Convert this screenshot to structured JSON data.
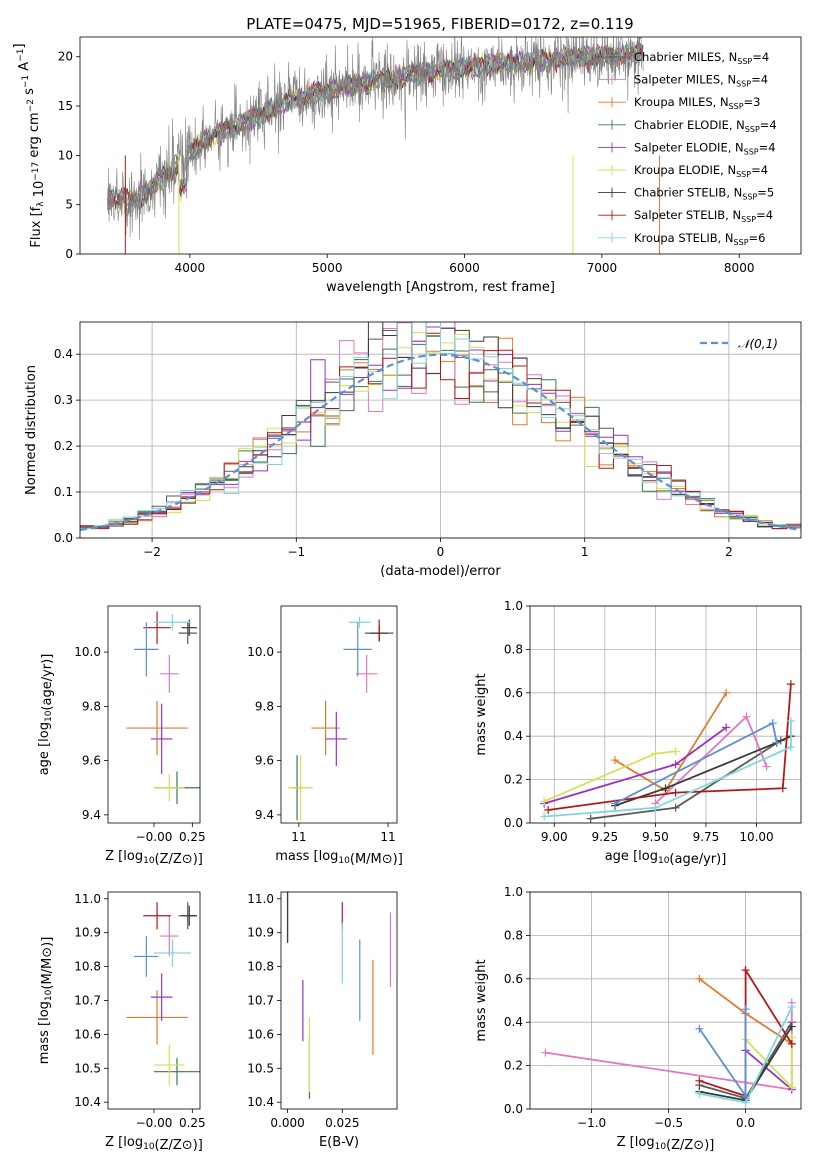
{
  "figure": {
    "title": "PLATE=0475, MJD=51965, FIBERID=0172, z=0.119"
  },
  "colors": {
    "Chabrier MILES": "#5a5a5a",
    "Salpeter MILES": "#e377c2",
    "Kroupa MILES": "#e07b2a",
    "Chabrier ELODIE": "#3a7a4a",
    "Salpeter ELODIE": "#9b30c8",
    "Kroupa ELODIE": "#d4e157",
    "Chabrier STELIB": "#3a3a3a",
    "Salpeter STELIB": "#b21818",
    "Kroupa STELIB": "#7fd6dc",
    "gauss": "#5b8fd6",
    "blueExtra": "#5b8fd6",
    "spectrum": "#808080"
  },
  "chart_data": [
    {
      "id": "spectrum",
      "type": "line",
      "title": "PLATE=0475, MJD=51965, FIBERID=0172, z=0.119",
      "xlabel": "wavelength [Angstrom, rest frame]",
      "ylabel": "Flux [f_λ 10^-17 erg cm^-2 s^-1 A^-1]",
      "xlim": [
        3200,
        8450
      ],
      "ylim": [
        0,
        22
      ],
      "xticks": [
        4000,
        5000,
        6000,
        7000,
        8000
      ],
      "yticks": [
        0,
        5,
        10,
        15,
        20
      ],
      "grid": false,
      "legend_position": "top-right",
      "legend": [
        {
          "name": "Chabrier MILES",
          "N": "4"
        },
        {
          "name": "Salpeter MILES",
          "N": "4"
        },
        {
          "name": "Kroupa MILES",
          "N": "3"
        },
        {
          "name": "Chabrier ELODIE",
          "N": "4"
        },
        {
          "name": "Salpeter ELODIE",
          "N": "4"
        },
        {
          "name": "Kroupa ELODIE",
          "N": "4"
        },
        {
          "name": "Chabrier STELIB",
          "N": "5"
        },
        {
          "name": "Salpeter STELIB",
          "N": "4"
        },
        {
          "name": "Kroupa STELIB",
          "N": "6"
        }
      ],
      "continuum": {
        "x": [
          3400,
          3600,
          3800,
          3950,
          4100,
          4300,
          4500,
          4700,
          4900,
          5100,
          5300,
          5500,
          5700,
          5900,
          6100,
          6300,
          6500,
          6700,
          6900,
          7100,
          7300
        ],
        "y": [
          5.7,
          5.5,
          7.5,
          9.8,
          11.5,
          12.8,
          14.0,
          15.4,
          16.2,
          16.9,
          17.5,
          17.9,
          18.3,
          18.7,
          19.0,
          19.3,
          19.5,
          19.8,
          20.0,
          20.2,
          20.4
        ]
      }
    },
    {
      "id": "residuals",
      "type": "bar",
      "xlabel": "(data-model)/error",
      "ylabel": "Normed distribution",
      "xlim": [
        -2.5,
        2.5
      ],
      "ylim": [
        0,
        0.47
      ],
      "xticks": [
        -2,
        -1,
        0,
        1,
        2
      ],
      "yticks": [
        0.0,
        0.1,
        0.2,
        0.3,
        0.4
      ],
      "grid": true,
      "legend_position": "top-right",
      "legend": [
        "𝒩(0,1)"
      ],
      "bin_width": 0.1
    },
    {
      "id": "z-age",
      "type": "scatter",
      "xlabel": "Z [log10(Z/Z⊙)]",
      "ylabel": "age  [log10(age/yr)]",
      "xlim": [
        -0.3,
        0.3
      ],
      "ylim": [
        9.37,
        10.17
      ],
      "xticks": [
        -0.0,
        0.25
      ],
      "xtick_labels": [
        "−0.00",
        "0.25"
      ],
      "yticks": [
        9.4,
        9.6,
        9.8,
        10.0
      ],
      "points": [
        {
          "model": "Chabrier MILES",
          "x": 0.22,
          "y": 10.07,
          "xerr": 0.06,
          "yerr": 0.04
        },
        {
          "model": "Salpeter MILES",
          "x": 0.1,
          "y": 9.92,
          "xerr": 0.06,
          "yerr": 0.07
        },
        {
          "model": "Kroupa MILES",
          "x": 0.02,
          "y": 9.72,
          "xerr": 0.2,
          "yerr": 0.1
        },
        {
          "model": "Chabrier ELODIE",
          "x": 0.15,
          "y": 9.5,
          "xerr": 0.15,
          "yerr": 0.06
        },
        {
          "model": "Salpeter ELODIE",
          "x": 0.05,
          "y": 9.68,
          "xerr": 0.07,
          "yerr": 0.13
        },
        {
          "model": "Kroupa ELODIE",
          "x": 0.1,
          "y": 9.5,
          "xerr": 0.1,
          "yerr": 0.05
        },
        {
          "model": "Chabrier STELIB",
          "x": 0.23,
          "y": 10.09,
          "xerr": 0.05,
          "yerr": 0.03
        },
        {
          "model": "Salpeter STELIB",
          "x": 0.02,
          "y": 10.09,
          "xerr": 0.09,
          "yerr": 0.06
        },
        {
          "model": "Kroupa STELIB",
          "x": 0.12,
          "y": 10.11,
          "xerr": 0.12,
          "yerr": 0.03
        },
        {
          "model": "extra",
          "x": -0.05,
          "y": 10.01,
          "xerr": 0.08,
          "yerr": 0.1
        }
      ]
    },
    {
      "id": "mass-age",
      "type": "scatter",
      "xlabel": "mass [log10(M/M⊙)]",
      "ylabel": "",
      "xlim": [
        10.4,
        11.05
      ],
      "ylim": [
        9.37,
        10.17
      ],
      "xticks": [
        10.5,
        11.0
      ],
      "yticks": [
        9.4,
        9.6,
        9.8,
        10.0
      ],
      "points": [
        {
          "model": "Chabrier MILES",
          "x": 10.95,
          "y": 10.07,
          "xerr": 0.08,
          "yerr": 0.03
        },
        {
          "model": "Salpeter MILES",
          "x": 10.88,
          "y": 9.92,
          "xerr": 0.06,
          "yerr": 0.07
        },
        {
          "model": "Kroupa MILES",
          "x": 10.65,
          "y": 9.72,
          "xerr": 0.08,
          "yerr": 0.1
        },
        {
          "model": "Chabrier ELODIE",
          "x": 10.49,
          "y": 9.5,
          "xerr": 0.03,
          "yerr": 0.12
        },
        {
          "model": "Salpeter ELODIE",
          "x": 10.71,
          "y": 9.68,
          "xerr": 0.06,
          "yerr": 0.1
        },
        {
          "model": "Kroupa ELODIE",
          "x": 10.51,
          "y": 9.5,
          "xerr": 0.07,
          "yerr": 0.12
        },
        {
          "model": "Chabrier STELIB",
          "x": 10.95,
          "y": 10.07,
          "xerr": 0.05,
          "yerr": 0.03
        },
        {
          "model": "Salpeter STELIB",
          "x": 10.95,
          "y": 10.08,
          "xerr": 0.0,
          "yerr": 0.04
        },
        {
          "model": "Kroupa STELIB",
          "x": 10.84,
          "y": 10.11,
          "xerr": 0.06,
          "yerr": 0.02
        },
        {
          "model": "extra",
          "x": 10.83,
          "y": 10.01,
          "xerr": 0.08,
          "yerr": 0.1
        }
      ]
    },
    {
      "id": "age-weight",
      "type": "line",
      "xlabel": "age  [log10(age/yr)]",
      "ylabel": "mass weight",
      "xlim": [
        8.88,
        10.22
      ],
      "ylim": [
        0,
        1
      ],
      "xticks": [
        9.0,
        9.25,
        9.5,
        9.75,
        10.0
      ],
      "yticks": [
        0.0,
        0.2,
        0.4,
        0.6,
        0.8,
        1.0
      ],
      "grid": true,
      "series": [
        {
          "model": "Chabrier MILES",
          "x": [
            9.18,
            9.6,
            10.12,
            10.17
          ],
          "y": [
            0.02,
            0.07,
            0.38,
            0.4
          ]
        },
        {
          "model": "Salpeter MILES",
          "x": [
            9.5,
            9.95,
            10.05
          ],
          "y": [
            0.09,
            0.49,
            0.26
          ]
        },
        {
          "model": "Kroupa MILES",
          "x": [
            9.3,
            9.55,
            9.85
          ],
          "y": [
            0.29,
            0.15,
            0.6
          ]
        },
        {
          "model": "Salpeter ELODIE",
          "x": [
            8.95,
            9.6,
            9.85
          ],
          "y": [
            0.09,
            0.27,
            0.44
          ]
        },
        {
          "model": "Kroupa ELODIE",
          "x": [
            8.95,
            9.5,
            9.6
          ],
          "y": [
            0.1,
            0.32,
            0.33
          ]
        },
        {
          "model": "Chabrier STELIB",
          "x": [
            9.3,
            9.55,
            10.1,
            10.17
          ],
          "y": [
            0.08,
            0.16,
            0.37,
            0.4
          ]
        },
        {
          "model": "Salpeter STELIB",
          "x": [
            8.97,
            9.6,
            10.13,
            10.17
          ],
          "y": [
            0.06,
            0.14,
            0.16,
            0.64
          ]
        },
        {
          "model": "Kroupa STELIB",
          "x": [
            8.95,
            9.5,
            10.17,
            10.17
          ],
          "y": [
            0.03,
            0.07,
            0.35,
            0.47
          ]
        },
        {
          "model": "extra",
          "x": [
            9.3,
            10.08,
            10.1
          ],
          "y": [
            0.09,
            0.46,
            0.37
          ]
        }
      ]
    },
    {
      "id": "z-mass",
      "type": "scatter",
      "xlabel": "Z [log10(Z/Z⊙)]",
      "ylabel": "mass [log10(M/M⊙)]",
      "xlim": [
        -0.3,
        0.3
      ],
      "ylim": [
        10.38,
        11.02
      ],
      "xticks": [
        -0.0,
        0.25
      ],
      "xtick_labels": [
        "−0.00",
        "0.25"
      ],
      "yticks": [
        10.4,
        10.5,
        10.6,
        10.7,
        10.8,
        10.9,
        11.0
      ],
      "points": [
        {
          "model": "Chabrier MILES",
          "x": 0.22,
          "y": 10.95,
          "xerr": 0.06,
          "yerr": 0.04
        },
        {
          "model": "Salpeter MILES",
          "x": 0.1,
          "y": 10.89,
          "xerr": 0.06,
          "yerr": 0.06
        },
        {
          "model": "Kroupa MILES",
          "x": 0.02,
          "y": 10.65,
          "xerr": 0.2,
          "yerr": 0.08
        },
        {
          "model": "Chabrier ELODIE",
          "x": 0.15,
          "y": 10.49,
          "xerr": 0.15,
          "yerr": 0.04
        },
        {
          "model": "Salpeter ELODIE",
          "x": 0.05,
          "y": 10.71,
          "xerr": 0.07,
          "yerr": 0.07
        },
        {
          "model": "Kroupa ELODIE",
          "x": 0.1,
          "y": 10.51,
          "xerr": 0.1,
          "yerr": 0.06
        },
        {
          "model": "Chabrier STELIB",
          "x": 0.23,
          "y": 10.95,
          "xerr": 0.05,
          "yerr": 0.03
        },
        {
          "model": "Salpeter STELIB",
          "x": 0.02,
          "y": 10.95,
          "xerr": 0.09,
          "yerr": 0.04
        },
        {
          "model": "Kroupa STELIB",
          "x": 0.12,
          "y": 10.84,
          "xerr": 0.12,
          "yerr": 0.04
        },
        {
          "model": "extra",
          "x": -0.05,
          "y": 10.83,
          "xerr": 0.08,
          "yerr": 0.06
        }
      ]
    },
    {
      "id": "ebv-mass",
      "type": "scatter",
      "xlabel": "E(B-V)",
      "ylabel": "",
      "xlim": [
        -0.003,
        0.05
      ],
      "ylim": [
        10.38,
        11.02
      ],
      "xticks": [
        0.0,
        0.025
      ],
      "xtick_labels": [
        "0.000",
        "0.025"
      ],
      "yticks": [
        10.4,
        10.5,
        10.6,
        10.7,
        10.8,
        10.9,
        11.0
      ],
      "points": [
        {
          "model": "Chabrier MILES",
          "x": 0.0,
          "y": 10.95,
          "xerr": 0,
          "yerr": 0.08
        },
        {
          "model": "Salpeter MILES",
          "x": 0.047,
          "y": 10.85,
          "xerr": 0,
          "yerr": 0.11
        },
        {
          "model": "Kroupa MILES",
          "x": 0.039,
          "y": 10.68,
          "xerr": 0,
          "yerr": 0.14
        },
        {
          "model": "Chabrier ELODIE",
          "x": 0.01,
          "y": 10.5,
          "xerr": 0,
          "yerr": 0.09
        },
        {
          "model": "Salpeter ELODIE",
          "x": 0.007,
          "y": 10.67,
          "xerr": 0,
          "yerr": 0.09
        },
        {
          "model": "Kroupa ELODIE",
          "x": 0.01,
          "y": 10.54,
          "xerr": 0,
          "yerr": 0.11
        },
        {
          "model": "Chabrier STELIB",
          "x": 0.0,
          "y": 10.95,
          "xerr": 0,
          "yerr": 0.08
        },
        {
          "model": "Salpeter STELIB",
          "x": 0.025,
          "y": 10.95,
          "xerr": 0,
          "yerr": 0.04
        },
        {
          "model": "Kroupa STELIB",
          "x": 0.025,
          "y": 10.84,
          "xerr": 0,
          "yerr": 0.09
        },
        {
          "model": "extra",
          "x": 0.033,
          "y": 10.76,
          "xerr": 0,
          "yerr": 0.12
        }
      ]
    },
    {
      "id": "z-weight",
      "type": "line",
      "xlabel": "Z [log10(Z/Z⊙)]",
      "ylabel": "mass weight",
      "xlim": [
        -1.4,
        0.36
      ],
      "ylim": [
        0,
        1
      ],
      "xticks": [
        -1.0,
        -0.5,
        0.0
      ],
      "yticks": [
        0.0,
        0.2,
        0.4,
        0.6,
        0.8,
        1.0
      ],
      "grid": true,
      "series": [
        {
          "model": "Chabrier MILES",
          "x": [
            -0.3,
            0.0,
            0.3
          ],
          "y": [
            0.11,
            0.05,
            0.4
          ]
        },
        {
          "model": "Salpeter MILES",
          "x": [
            -1.3,
            0.3,
            0.3
          ],
          "y": [
            0.26,
            0.09,
            0.49
          ]
        },
        {
          "model": "Kroupa MILES",
          "x": [
            -0.3,
            0.0,
            0.3
          ],
          "y": [
            0.6,
            0.44,
            0.3
          ]
        },
        {
          "model": "Salpeter ELODIE",
          "x": [
            0.0,
            0.3
          ],
          "y": [
            0.27,
            0.09
          ]
        },
        {
          "model": "Kroupa ELODIE",
          "x": [
            0.0,
            0.3,
            0.3
          ],
          "y": [
            0.32,
            0.1,
            0.33
          ]
        },
        {
          "model": "Chabrier STELIB",
          "x": [
            -0.3,
            0.0,
            0.3
          ],
          "y": [
            0.08,
            0.04,
            0.38
          ]
        },
        {
          "model": "Salpeter STELIB",
          "x": [
            -0.3,
            0.0,
            0.0,
            0.3
          ],
          "y": [
            0.13,
            0.06,
            0.64,
            0.3
          ]
        },
        {
          "model": "Kroupa STELIB",
          "x": [
            -0.3,
            0.0,
            0.3
          ],
          "y": [
            0.07,
            0.03,
            0.47
          ]
        },
        {
          "model": "extra",
          "x": [
            -0.3,
            0.0,
            0.0
          ],
          "y": [
            0.37,
            0.06,
            0.46
          ]
        }
      ]
    }
  ]
}
